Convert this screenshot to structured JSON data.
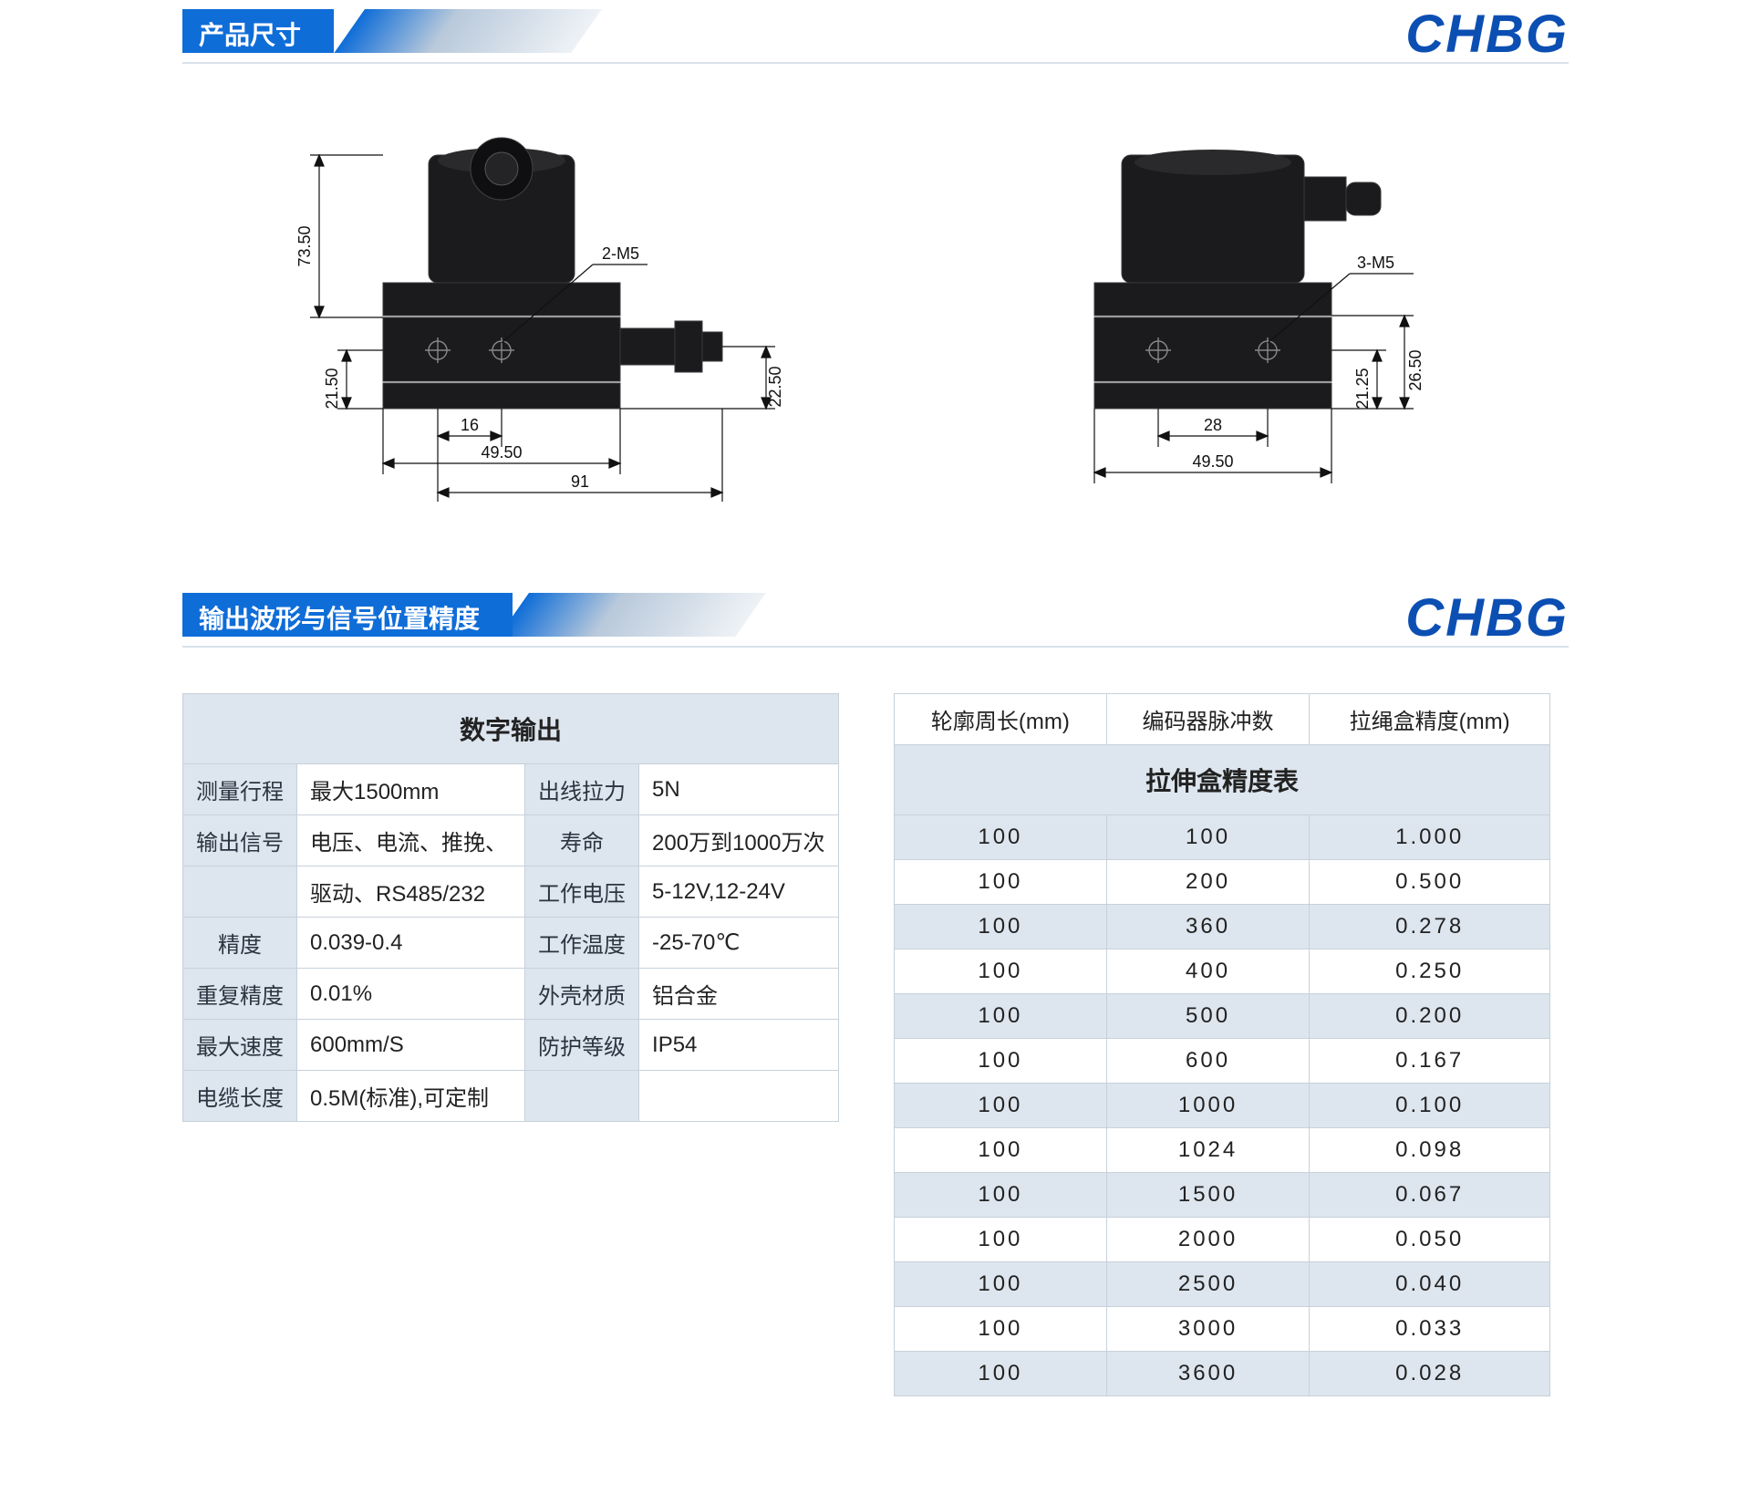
{
  "brand": "CHBG",
  "sections": {
    "dimensions_title": "产品尺寸",
    "signal_title": "输出波形与信号位置精度"
  },
  "diagrams": {
    "front": {
      "v_top": "73.50",
      "v_bottom": "21.50",
      "right_h": "22.50",
      "h_inner": "16",
      "h_mid": "49.50",
      "h_outer": "91",
      "callout": "2-M5"
    },
    "side": {
      "callout": "3-M5",
      "v_inner": "21.25",
      "v_outer": "26.50",
      "h_top": "28",
      "h_bottom": "49.50"
    },
    "colors": {
      "body": "#1b1b1d",
      "dim": "#111111"
    }
  },
  "digital_output": {
    "title": "数字输出",
    "rows": [
      [
        "测量行程",
        "最大1500mm",
        "出线拉力",
        "5N"
      ],
      [
        "输出信号",
        "电压、电流、推挽、",
        "寿命",
        "200万到1000万次"
      ],
      [
        "",
        "驱动、RS485/232",
        "工作电压",
        "5-12V,12-24V"
      ],
      [
        "精度",
        "0.039-0.4",
        "工作温度",
        "-25-70℃"
      ],
      [
        "重复精度",
        "0.01%",
        "外壳材质",
        "铝合金"
      ],
      [
        "最大速度",
        "600mm/S",
        "防护等级",
        "IP54"
      ],
      [
        "电缆长度",
        "0.5M(标准),可定制",
        "",
        ""
      ]
    ]
  },
  "precision_table": {
    "title": "拉伸盒精度表",
    "columns": [
      "轮廓周长(mm)",
      "编码器脉冲数",
      "拉绳盒精度(mm)"
    ],
    "rows": [
      [
        "100",
        "100",
        "1.000"
      ],
      [
        "100",
        "200",
        "0.500"
      ],
      [
        "100",
        "360",
        "0.278"
      ],
      [
        "100",
        "400",
        "0.250"
      ],
      [
        "100",
        "500",
        "0.200"
      ],
      [
        "100",
        "600",
        "0.167"
      ],
      [
        "100",
        "1000",
        "0.100"
      ],
      [
        "100",
        "1024",
        "0.098"
      ],
      [
        "100",
        "1500",
        "0.067"
      ],
      [
        "100",
        "2000",
        "0.050"
      ],
      [
        "100",
        "2500",
        "0.040"
      ],
      [
        "100",
        "3000",
        "0.033"
      ],
      [
        "100",
        "3600",
        "0.028"
      ]
    ],
    "row_bg_alt": "#dde5ee",
    "row_bg": "#ffffff",
    "border_color": "#c8d1da"
  },
  "style": {
    "accent_blue": "#0f6dd8",
    "brand_blue": "#0c4fb3",
    "cell_grey": "#dde5ee",
    "title_fontsize": 28,
    "cell_fontsize": 24
  }
}
